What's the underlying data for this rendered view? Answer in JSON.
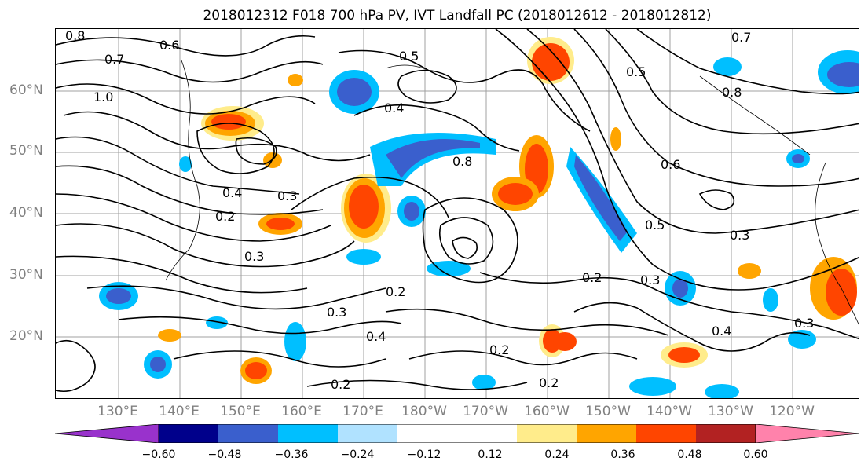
{
  "title": "2018012312 F018 700 hPa PV, IVT Landfall PC (2018012612 - 2018012812)",
  "map": {
    "projection": "lat-lon",
    "grid": true,
    "lat_labels": [
      "60°N",
      "50°N",
      "40°N",
      "30°N",
      "20°N"
    ],
    "lon_labels": [
      "130°E",
      "140°E",
      "150°E",
      "160°E",
      "170°E",
      "180°W",
      "170°W",
      "160°W",
      "150°W",
      "140°W",
      "130°W",
      "120°W"
    ],
    "contour_labels": [
      "0.8",
      "0.6",
      "0.7",
      "1.0",
      "0.5",
      "0.4",
      "0.3",
      "0.2",
      "0.4",
      "0.3",
      "0.2",
      "0.3",
      "0.4",
      "0.2",
      "0.3",
      "0.5",
      "0.8",
      "0.6",
      "0.2",
      "0.3",
      "0.4",
      "0.2",
      "0.3",
      "0.2",
      "0.5",
      "0.7",
      "0.8"
    ]
  },
  "colorbar": {
    "colors": [
      "#9932cc",
      "#00008b",
      "#3a5fcd",
      "#00bfff",
      "#b0e2ff",
      "#ffffff",
      "#ffffff",
      "#ffec8b",
      "#ffa500",
      "#ff4500",
      "#b22222",
      "#ff82ab"
    ],
    "ticks": [
      "−0.60",
      "−0.48",
      "−0.36",
      "−0.24",
      "−0.12",
      "0.12",
      "0.24",
      "0.36",
      "0.48",
      "0.60"
    ]
  }
}
